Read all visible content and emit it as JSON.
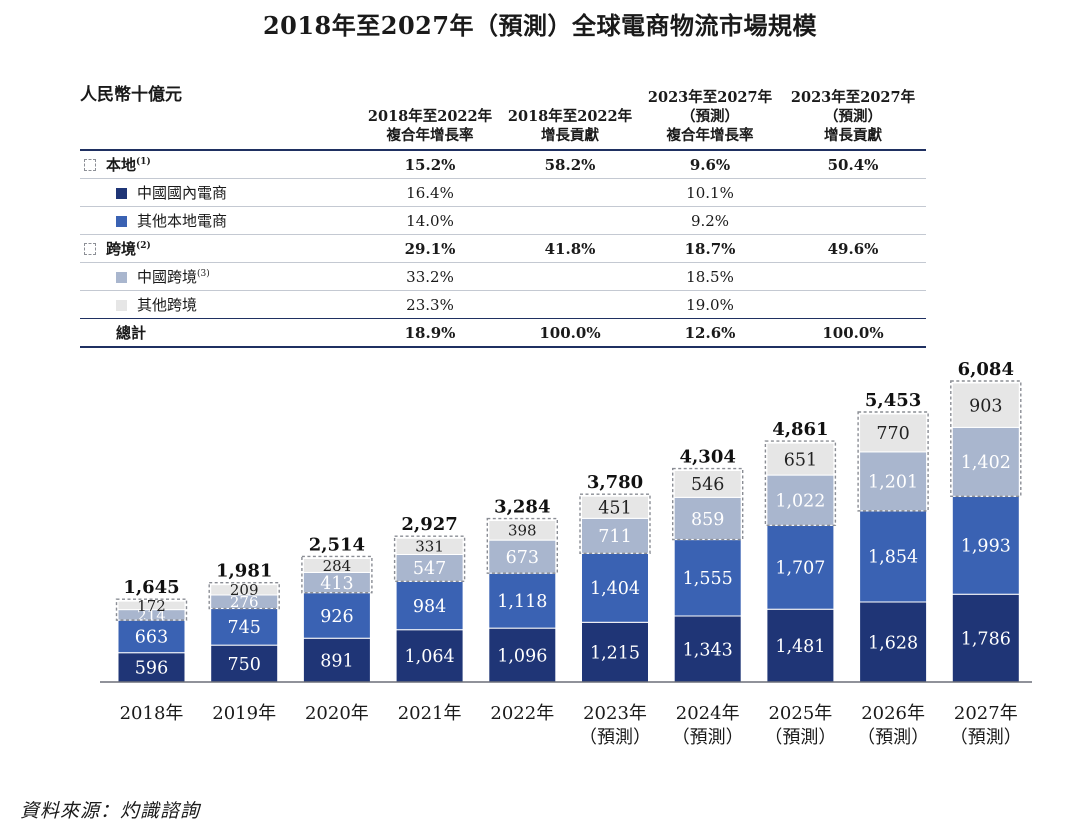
{
  "title": "2018年至2027年（預測）全球電商物流市場規模",
  "unit_label": "人民幣十億元",
  "table": {
    "headers": [
      "2018年至2022年\n複合年增長率",
      "2018年至2022年\n增長貢獻",
      "2023年至2027年\n（預測）\n複合年增長率",
      "2023年至2027年\n（預測）\n增長貢獻"
    ],
    "rows": [
      {
        "label": "本地",
        "sup": "(1)",
        "swatch": "dashed",
        "bold": true,
        "values": [
          "15.2%",
          "58.2%",
          "9.6%",
          "50.4%"
        ]
      },
      {
        "label": "中國國內電商",
        "sup": "",
        "swatch": "#1f3576",
        "bold": false,
        "values": [
          "16.4%",
          "",
          "10.1%",
          ""
        ]
      },
      {
        "label": "其他本地電商",
        "sup": "",
        "swatch": "#3a62b3",
        "bold": false,
        "values": [
          "14.0%",
          "",
          "9.2%",
          ""
        ]
      },
      {
        "label": "跨境",
        "sup": "(2)",
        "swatch": "dashed",
        "bold": true,
        "values": [
          "29.1%",
          "41.8%",
          "18.7%",
          "49.6%"
        ]
      },
      {
        "label": "中國跨境",
        "sup": "(3)",
        "swatch": "#a9b6ce",
        "bold": false,
        "values": [
          "33.2%",
          "",
          "18.5%",
          ""
        ]
      },
      {
        "label": "其他跨境",
        "sup": "",
        "swatch": "#e6e6e6",
        "bold": false,
        "values": [
          "23.3%",
          "",
          "19.0%",
          ""
        ]
      },
      {
        "label": "總計",
        "sup": "",
        "swatch": "",
        "bold": true,
        "values": [
          "18.9%",
          "100.0%",
          "12.6%",
          "100.0%"
        ]
      }
    ]
  },
  "chart_data": {
    "type": "bar",
    "stacked": true,
    "categories": [
      "2018年",
      "2019年",
      "2020年",
      "2021年",
      "2022年",
      "2023年\n（預測）",
      "2024年\n（預測）",
      "2025年\n（預測）",
      "2026年\n（預測）",
      "2027年\n（預測）"
    ],
    "series": [
      {
        "name": "中國國內電商",
        "color": "#1f3576",
        "values": [
          596,
          750,
          891,
          1064,
          1096,
          1215,
          1343,
          1481,
          1628,
          1786
        ],
        "labels": [
          "596",
          "750",
          "891",
          "1,064",
          "1,096",
          "1,215",
          "1,343",
          "1,481",
          "1,628",
          "1,786"
        ]
      },
      {
        "name": "其他本地電商",
        "color": "#3a62b3",
        "values": [
          663,
          745,
          926,
          984,
          1118,
          1404,
          1555,
          1707,
          1854,
          1993
        ],
        "labels": [
          "663",
          "745",
          "926",
          "984",
          "1,118",
          "1,404",
          "1,555",
          "1,707",
          "1,854",
          "1,993"
        ]
      },
      {
        "name": "中國跨境",
        "color": "#a9b6ce",
        "values": [
          214,
          276,
          413,
          547,
          673,
          711,
          859,
          1022,
          1201,
          1402
        ],
        "labels": [
          "214",
          "276",
          "413",
          "547",
          "673",
          "711",
          "859",
          "1,022",
          "1,201",
          "1,402"
        ]
      },
      {
        "name": "其他跨境",
        "color": "#e6e6e6",
        "values": [
          172,
          209,
          284,
          331,
          398,
          451,
          546,
          651,
          770,
          903
        ],
        "labels": [
          "172",
          "209",
          "284",
          "331",
          "398",
          "451",
          "546",
          "651",
          "770",
          "903"
        ]
      }
    ],
    "totals": [
      1645,
      1981,
      2514,
      2927,
      3284,
      3780,
      4304,
      4861,
      5453,
      6084
    ],
    "total_labels": [
      "1,645",
      "1,981",
      "2,514",
      "2,927",
      "3,284",
      "3,780",
      "4,304",
      "4,861",
      "5,453",
      "6,084"
    ],
    "ylim": [
      0,
      6084
    ],
    "legend": "table-above"
  },
  "source": "資料來源：灼識諮詢"
}
